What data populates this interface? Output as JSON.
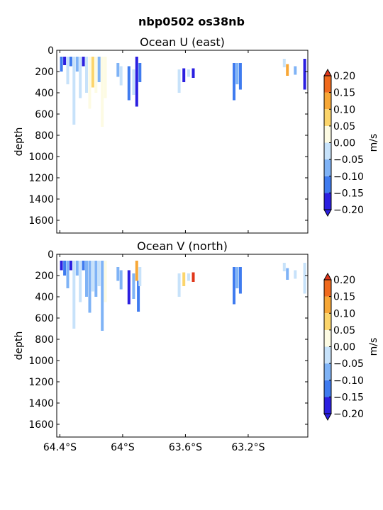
{
  "figure": {
    "suptitle": "nbp0502 os38nb"
  },
  "chart_data": [
    {
      "type": "heatmap",
      "title": "Ocean U (east)",
      "ylabel": "depth",
      "xlabel": "",
      "ylim": [
        1720,
        0
      ],
      "yticks": [
        0,
        200,
        400,
        600,
        800,
        1000,
        1200,
        1400,
        1600
      ],
      "xlim": [
        -64.42,
        -62.82
      ],
      "xticks": [
        {
          "value": -64.4,
          "label": ""
        },
        {
          "value": -64.0,
          "label": ""
        },
        {
          "value": -63.6,
          "label": ""
        },
        {
          "value": -63.2,
          "label": ""
        }
      ],
      "colorbar": {
        "label": "m/s",
        "levels": [
          -0.2,
          -0.15,
          -0.1,
          -0.05,
          0.0,
          0.05,
          0.1,
          0.15,
          0.2
        ],
        "ticklabels": [
          "0.20",
          "0.15",
          "0.10",
          "0.05",
          "0.00",
          "−0.05",
          "−0.10",
          "−0.15",
          "−0.20"
        ],
        "colors": [
          "#2b1fe0",
          "#3f7bef",
          "#7fb3f6",
          "#c7e2fa",
          "#fdfbe3",
          "#fcd56b",
          "#f7a736",
          "#f06a1d",
          "#e0361a"
        ],
        "extend": "both"
      },
      "cells": [
        {
          "lon": -64.39,
          "d0": 60,
          "d1": 200,
          "v": -0.12
        },
        {
          "lon": -64.37,
          "d0": 60,
          "d1": 140,
          "v": -0.17
        },
        {
          "lon": -64.35,
          "d0": 60,
          "d1": 320,
          "v": -0.05
        },
        {
          "lon": -64.33,
          "d0": 60,
          "d1": 150,
          "v": -0.15
        },
        {
          "lon": -64.31,
          "d0": 60,
          "d1": 700,
          "v": -0.03
        },
        {
          "lon": -64.29,
          "d0": 60,
          "d1": 200,
          "v": -0.1
        },
        {
          "lon": -64.27,
          "d0": 60,
          "d1": 450,
          "v": -0.04
        },
        {
          "lon": -64.25,
          "d0": 60,
          "d1": 150,
          "v": -0.16
        },
        {
          "lon": -64.23,
          "d0": 60,
          "d1": 400,
          "v": -0.03
        },
        {
          "lon": -64.21,
          "d0": 60,
          "d1": 550,
          "v": 0.02
        },
        {
          "lon": -64.19,
          "d0": 60,
          "d1": 350,
          "v": 0.06
        },
        {
          "lon": -64.17,
          "d0": 60,
          "d1": 400,
          "v": 0.02
        },
        {
          "lon": -64.15,
          "d0": 60,
          "d1": 300,
          "v": -0.06
        },
        {
          "lon": -64.13,
          "d0": 60,
          "d1": 720,
          "v": 0.02
        },
        {
          "lon": -64.11,
          "d0": 60,
          "d1": 450,
          "v": 0.01
        },
        {
          "lon": -64.03,
          "d0": 120,
          "d1": 250,
          "v": -0.07
        },
        {
          "lon": -64.01,
          "d0": 150,
          "d1": 330,
          "v": -0.04
        },
        {
          "lon": -63.96,
          "d0": 150,
          "d1": 470,
          "v": -0.12
        },
        {
          "lon": -63.93,
          "d0": 180,
          "d1": 420,
          "v": -0.05
        },
        {
          "lon": -63.91,
          "d0": 60,
          "d1": 530,
          "v": -0.18
        },
        {
          "lon": -63.89,
          "d0": 120,
          "d1": 300,
          "v": -0.13
        },
        {
          "lon": -63.64,
          "d0": 180,
          "d1": 400,
          "v": -0.03
        },
        {
          "lon": -63.61,
          "d0": 170,
          "d1": 300,
          "v": -0.17
        },
        {
          "lon": -63.58,
          "d0": 180,
          "d1": 250,
          "v": -0.05
        },
        {
          "lon": -63.55,
          "d0": 170,
          "d1": 260,
          "v": -0.16
        },
        {
          "lon": -63.29,
          "d0": 120,
          "d1": 470,
          "v": -0.12
        },
        {
          "lon": -63.27,
          "d0": 120,
          "d1": 320,
          "v": -0.07
        },
        {
          "lon": -63.25,
          "d0": 120,
          "d1": 370,
          "v": -0.13
        },
        {
          "lon": -62.97,
          "d0": 80,
          "d1": 160,
          "v": -0.03
        },
        {
          "lon": -62.95,
          "d0": 130,
          "d1": 240,
          "v": 0.11
        },
        {
          "lon": -62.9,
          "d0": 150,
          "d1": 230,
          "v": -0.08
        },
        {
          "lon": -62.84,
          "d0": 80,
          "d1": 370,
          "v": -0.2
        }
      ]
    },
    {
      "type": "heatmap",
      "title": "Ocean V (north)",
      "ylabel": "depth",
      "xlabel": "",
      "ylim": [
        1720,
        0
      ],
      "yticks": [
        0,
        200,
        400,
        600,
        800,
        1000,
        1200,
        1400,
        1600
      ],
      "xlim": [
        -64.42,
        -62.82
      ],
      "xticks": [
        {
          "value": -64.4,
          "label": "64.4°S"
        },
        {
          "value": -64.0,
          "label": "64°S"
        },
        {
          "value": -63.6,
          "label": "63.6°S"
        },
        {
          "value": -63.2,
          "label": "63.2°S"
        }
      ],
      "colorbar": {
        "label": "m/s",
        "levels": [
          -0.2,
          -0.15,
          -0.1,
          -0.05,
          0.0,
          0.05,
          0.1,
          0.15,
          0.2
        ],
        "ticklabels": [
          "0.20",
          "0.15",
          "0.10",
          "0.05",
          "0.00",
          "−0.05",
          "−0.10",
          "−0.15",
          "−0.20"
        ],
        "colors": [
          "#2b1fe0",
          "#3f7bef",
          "#7fb3f6",
          "#c7e2fa",
          "#fdfbe3",
          "#fcd56b",
          "#f7a736",
          "#f06a1d",
          "#e0361a"
        ],
        "extend": "both"
      },
      "cells": [
        {
          "lon": -64.39,
          "d0": 60,
          "d1": 150,
          "v": -0.18
        },
        {
          "lon": -64.37,
          "d0": 60,
          "d1": 200,
          "v": -0.14
        },
        {
          "lon": -64.35,
          "d0": 60,
          "d1": 320,
          "v": -0.07
        },
        {
          "lon": -64.33,
          "d0": 60,
          "d1": 150,
          "v": -0.16
        },
        {
          "lon": -64.31,
          "d0": 60,
          "d1": 700,
          "v": -0.05
        },
        {
          "lon": -64.29,
          "d0": 60,
          "d1": 200,
          "v": -0.1
        },
        {
          "lon": -64.27,
          "d0": 60,
          "d1": 450,
          "v": -0.04
        },
        {
          "lon": -64.25,
          "d0": 60,
          "d1": 150,
          "v": -0.12
        },
        {
          "lon": -64.23,
          "d0": 60,
          "d1": 400,
          "v": -0.06
        },
        {
          "lon": -64.21,
          "d0": 60,
          "d1": 550,
          "v": -0.07
        },
        {
          "lon": -64.19,
          "d0": 60,
          "d1": 350,
          "v": -0.04
        },
        {
          "lon": -64.17,
          "d0": 60,
          "d1": 400,
          "v": -0.08
        },
        {
          "lon": -64.15,
          "d0": 60,
          "d1": 300,
          "v": -0.03
        },
        {
          "lon": -64.13,
          "d0": 60,
          "d1": 720,
          "v": -0.06
        },
        {
          "lon": -64.11,
          "d0": 60,
          "d1": 450,
          "v": 0.01
        },
        {
          "lon": -64.03,
          "d0": 120,
          "d1": 250,
          "v": -0.06
        },
        {
          "lon": -64.01,
          "d0": 150,
          "d1": 330,
          "v": -0.08
        },
        {
          "lon": -63.96,
          "d0": 150,
          "d1": 470,
          "v": -0.18
        },
        {
          "lon": -63.93,
          "d0": 180,
          "d1": 420,
          "v": -0.06
        },
        {
          "lon": -63.91,
          "d0": 60,
          "d1": 250,
          "v": 0.12
        },
        {
          "lon": -63.9,
          "d0": 250,
          "d1": 540,
          "v": -0.13
        },
        {
          "lon": -63.89,
          "d0": 120,
          "d1": 300,
          "v": -0.05
        },
        {
          "lon": -63.64,
          "d0": 180,
          "d1": 400,
          "v": -0.03
        },
        {
          "lon": -63.61,
          "d0": 170,
          "d1": 300,
          "v": 0.08
        },
        {
          "lon": -63.58,
          "d0": 180,
          "d1": 250,
          "v": -0.04
        },
        {
          "lon": -63.55,
          "d0": 170,
          "d1": 260,
          "v": 0.22
        },
        {
          "lon": -63.29,
          "d0": 120,
          "d1": 470,
          "v": -0.13
        },
        {
          "lon": -63.27,
          "d0": 120,
          "d1": 320,
          "v": -0.08
        },
        {
          "lon": -63.25,
          "d0": 120,
          "d1": 370,
          "v": -0.12
        },
        {
          "lon": -62.97,
          "d0": 80,
          "d1": 160,
          "v": -0.03
        },
        {
          "lon": -62.95,
          "d0": 130,
          "d1": 240,
          "v": -0.08
        },
        {
          "lon": -62.9,
          "d0": 150,
          "d1": 230,
          "v": -0.05
        },
        {
          "lon": -62.84,
          "d0": 80,
          "d1": 370,
          "v": -0.04
        }
      ]
    }
  ]
}
